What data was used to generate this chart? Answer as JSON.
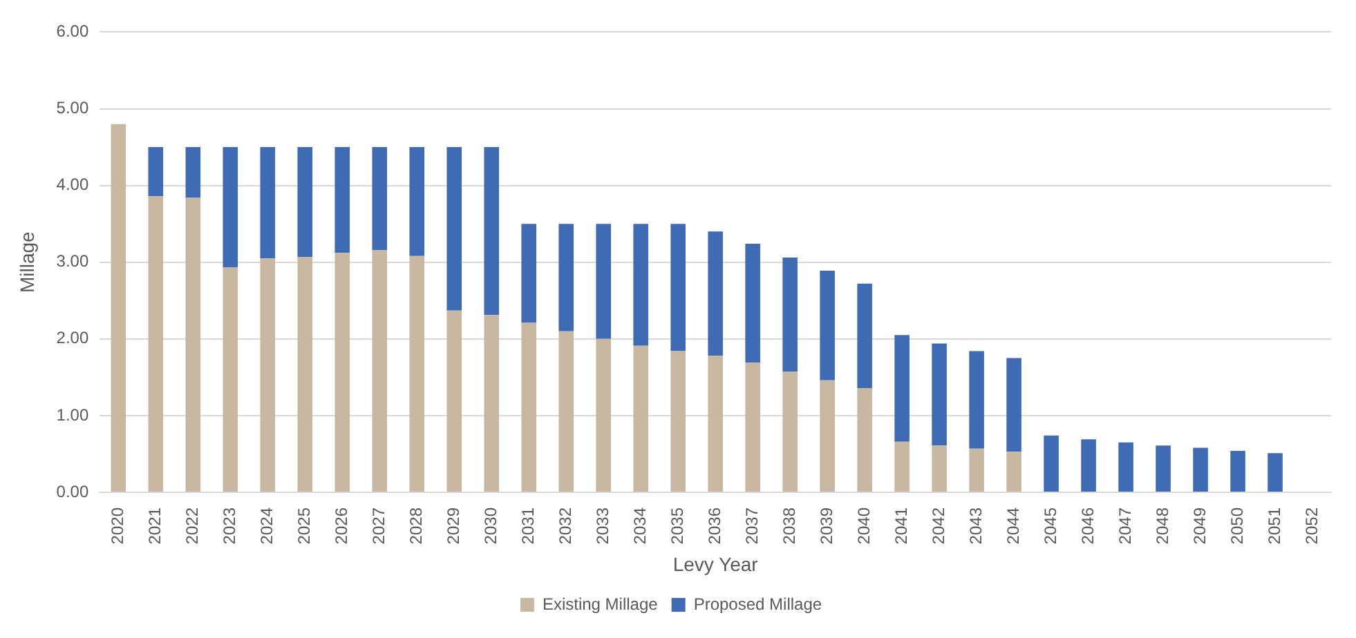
{
  "chart_data": {
    "type": "bar",
    "stacked": true,
    "xlabel": "Levy Year",
    "ylabel": "Millage",
    "categories": [
      "2020",
      "2021",
      "2022",
      "2023",
      "2024",
      "2025",
      "2026",
      "2027",
      "2028",
      "2029",
      "2030",
      "2031",
      "2032",
      "2033",
      "2034",
      "2035",
      "2036",
      "2037",
      "2038",
      "2039",
      "2040",
      "2041",
      "2042",
      "2043",
      "2044",
      "2045",
      "2046",
      "2047",
      "2048",
      "2049",
      "2050",
      "2051",
      "2052"
    ],
    "series": [
      {
        "name": "Existing Millage",
        "color": "#c8b8a2",
        "values": [
          4.8,
          3.86,
          3.84,
          2.93,
          3.05,
          3.07,
          3.12,
          3.16,
          3.08,
          2.37,
          2.31,
          2.21,
          2.1,
          2.0,
          1.91,
          1.84,
          1.78,
          1.69,
          1.57,
          1.46,
          1.36,
          0.66,
          0.61,
          0.57,
          0.53,
          null,
          null,
          null,
          null,
          null,
          null,
          null,
          null
        ]
      },
      {
        "name": "Proposed Millage",
        "color": "#3f6bb5",
        "values": [
          null,
          0.64,
          0.66,
          1.57,
          1.45,
          1.43,
          1.38,
          1.34,
          1.42,
          2.13,
          2.19,
          1.29,
          1.4,
          1.5,
          1.59,
          1.66,
          1.62,
          1.55,
          1.49,
          1.43,
          1.36,
          1.39,
          1.33,
          1.27,
          1.22,
          0.74,
          0.69,
          0.65,
          0.61,
          0.58,
          0.54,
          0.51,
          null
        ]
      }
    ],
    "ylim": [
      0,
      6
    ],
    "yticks": [
      {
        "value": 0,
        "label": "0.00"
      },
      {
        "value": 1,
        "label": "1.00"
      },
      {
        "value": 2,
        "label": "2.00"
      },
      {
        "value": 3,
        "label": "3.00"
      },
      {
        "value": 4,
        "label": "4.00"
      },
      {
        "value": 5,
        "label": "5.00"
      },
      {
        "value": 6,
        "label": "6.00"
      }
    ],
    "grid": "y",
    "legend": "bottom"
  }
}
